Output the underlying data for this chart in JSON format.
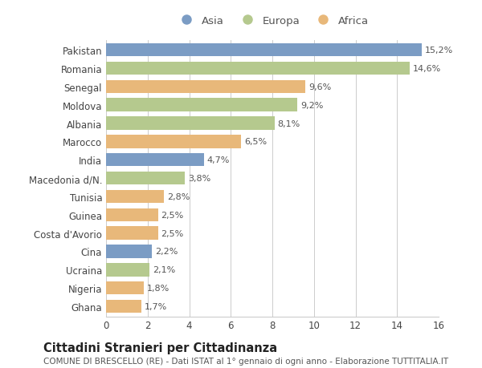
{
  "countries": [
    "Pakistan",
    "Romania",
    "Senegal",
    "Moldova",
    "Albania",
    "Marocco",
    "India",
    "Macedonia d/N.",
    "Tunisia",
    "Guinea",
    "Costa d'Avorio",
    "Cina",
    "Ucraina",
    "Nigeria",
    "Ghana"
  ],
  "values": [
    15.2,
    14.6,
    9.6,
    9.2,
    8.1,
    6.5,
    4.7,
    3.8,
    2.8,
    2.5,
    2.5,
    2.2,
    2.1,
    1.8,
    1.7
  ],
  "labels": [
    "15,2%",
    "14,6%",
    "9,6%",
    "9,2%",
    "8,1%",
    "6,5%",
    "4,7%",
    "3,8%",
    "2,8%",
    "2,5%",
    "2,5%",
    "2,2%",
    "2,1%",
    "1,8%",
    "1,7%"
  ],
  "continents": [
    "Asia",
    "Europa",
    "Africa",
    "Europa",
    "Europa",
    "Africa",
    "Asia",
    "Europa",
    "Africa",
    "Africa",
    "Africa",
    "Asia",
    "Europa",
    "Africa",
    "Africa"
  ],
  "colors": {
    "Asia": "#7b9cc4",
    "Europa": "#b5c98e",
    "Africa": "#e8b87a"
  },
  "legend_order": [
    "Asia",
    "Europa",
    "Africa"
  ],
  "xlim": [
    0,
    16
  ],
  "xticks": [
    0,
    2,
    4,
    6,
    8,
    10,
    12,
    14,
    16
  ],
  "title": "Cittadini Stranieri per Cittadinanza",
  "subtitle": "COMUNE DI BRESCELLO (RE) - Dati ISTAT al 1° gennaio di ogni anno - Elaborazione TUTTITALIA.IT",
  "background_color": "#ffffff",
  "grid_color": "#cccccc",
  "bar_height": 0.72,
  "title_fontsize": 10.5,
  "subtitle_fontsize": 7.5,
  "label_fontsize": 8,
  "tick_fontsize": 8.5,
  "legend_fontsize": 9.5
}
